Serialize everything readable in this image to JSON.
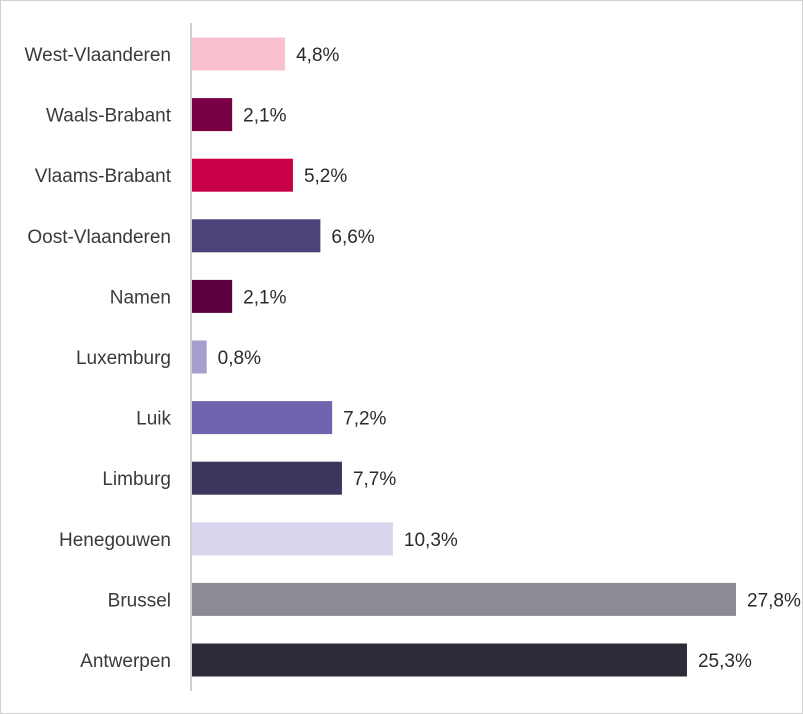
{
  "chart_data": {
    "type": "bar",
    "orientation": "horizontal",
    "categories": [
      "West-Vlaanderen",
      "Waals-Brabant",
      "Vlaams-Brabant",
      "Oost-Vlaanderen",
      "Namen",
      "Luxemburg",
      "Luik",
      "Limburg",
      "Henegouwen",
      "Brussel",
      "Antwerpen"
    ],
    "values": [
      4.8,
      2.1,
      5.2,
      6.6,
      2.1,
      0.8,
      7.2,
      7.7,
      10.3,
      27.8,
      25.3
    ],
    "value_labels": [
      "4,8%",
      "2,1%",
      "5,2%",
      "6,6%",
      "2,1%",
      "0,8%",
      "7,2%",
      "7,7%",
      "10,3%",
      "27,8%",
      "25,3%"
    ],
    "colors": [
      "#f9c0d0",
      "#7a0045",
      "#c8004a",
      "#4a4479",
      "#5c0040",
      "#a49fcf",
      "#6f64ae",
      "#3b365e",
      "#d8d5ec",
      "#8c8b93",
      "#2f2c3a"
    ],
    "xlim": [
      0,
      27.8
    ],
    "grid": false,
    "title": "",
    "xlabel": "",
    "ylabel": ""
  }
}
